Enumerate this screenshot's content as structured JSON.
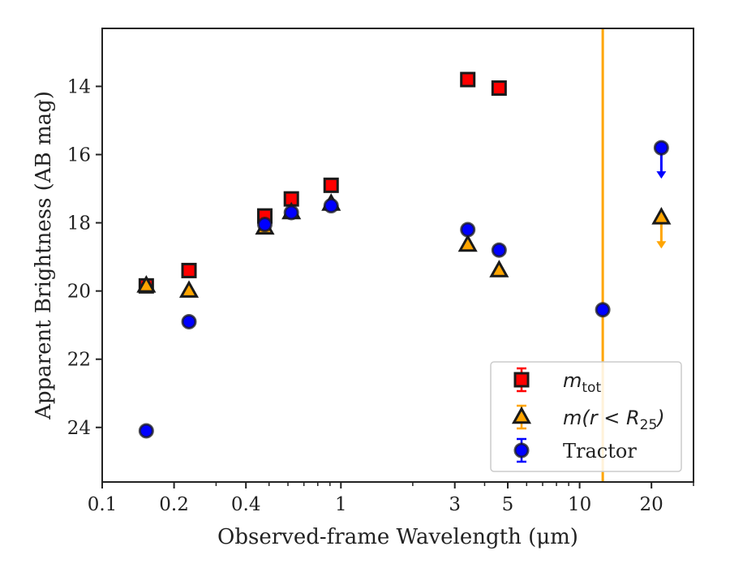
{
  "chart_data": {
    "type": "scatter",
    "xlabel": "Observed-frame Wavelength (μm)",
    "ylabel": "Apparent Brightness (AB mag)",
    "x_scale": "log",
    "xlim": [
      0.1,
      30
    ],
    "ylim": [
      25.6,
      12.3
    ],
    "y_inverted": true,
    "grid": false,
    "legend_position": "lower-right",
    "x_ticks": [
      {
        "value": 0.1,
        "label": "0.1"
      },
      {
        "value": 0.2,
        "label": "0.2"
      },
      {
        "value": 0.4,
        "label": "0.4"
      },
      {
        "value": 1,
        "label": "1"
      },
      {
        "value": 3,
        "label": "3"
      },
      {
        "value": 5,
        "label": "5"
      },
      {
        "value": 10,
        "label": "10"
      },
      {
        "value": 20,
        "label": "20"
      }
    ],
    "x_minor_ticks": [
      0.3,
      0.5,
      0.6,
      0.7,
      0.8,
      0.9,
      2,
      4,
      6,
      7,
      8,
      9,
      30
    ],
    "y_ticks": [
      {
        "value": 14,
        "label": "14"
      },
      {
        "value": 16,
        "label": "16"
      },
      {
        "value": 18,
        "label": "18"
      },
      {
        "value": 20,
        "label": "20"
      },
      {
        "value": 22,
        "label": "22"
      },
      {
        "value": 24,
        "label": "24"
      }
    ],
    "vertical_line": {
      "x": 12.5,
      "color": "#FFA500"
    },
    "series": [
      {
        "name": "m_tot",
        "legend_label_main": "m",
        "legend_label_sub": "tot",
        "marker": "square",
        "color": "#FF0000",
        "edge_color": "#1a1a1a",
        "points": [
          {
            "x": 0.153,
            "y": 19.85
          },
          {
            "x": 0.231,
            "y": 19.4
          },
          {
            "x": 0.48,
            "y": 17.8
          },
          {
            "x": 0.62,
            "y": 17.3
          },
          {
            "x": 0.91,
            "y": 16.9
          },
          {
            "x": 3.4,
            "y": 13.8
          },
          {
            "x": 4.6,
            "y": 14.05
          }
        ]
      },
      {
        "name": "m(r < R25)",
        "legend_label_main": "m(r < R",
        "legend_label_sub": "25",
        "legend_label_end": ")",
        "marker": "triangle",
        "color": "#FFA500",
        "edge_color": "#1a1a1a",
        "points": [
          {
            "x": 0.153,
            "y": 19.85
          },
          {
            "x": 0.231,
            "y": 20.0
          },
          {
            "x": 0.48,
            "y": 18.15
          },
          {
            "x": 0.62,
            "y": 17.7
          },
          {
            "x": 0.91,
            "y": 17.45
          },
          {
            "x": 3.4,
            "y": 18.65
          },
          {
            "x": 4.6,
            "y": 19.4
          }
        ],
        "upper_limits": [
          {
            "x": 22,
            "y": 17.85
          }
        ]
      },
      {
        "name": "Tractor",
        "marker": "circle",
        "color": "#0000FF",
        "edge_color": "#1a1a1a",
        "points": [
          {
            "x": 0.153,
            "y": 24.1
          },
          {
            "x": 0.231,
            "y": 20.9
          },
          {
            "x": 0.48,
            "y": 18.05
          },
          {
            "x": 0.62,
            "y": 17.7
          },
          {
            "x": 0.91,
            "y": 17.5
          },
          {
            "x": 3.4,
            "y": 18.2
          },
          {
            "x": 4.6,
            "y": 18.8
          },
          {
            "x": 12.5,
            "y": 20.55
          }
        ],
        "upper_limits": [
          {
            "x": 22,
            "y": 15.8
          }
        ]
      }
    ]
  }
}
